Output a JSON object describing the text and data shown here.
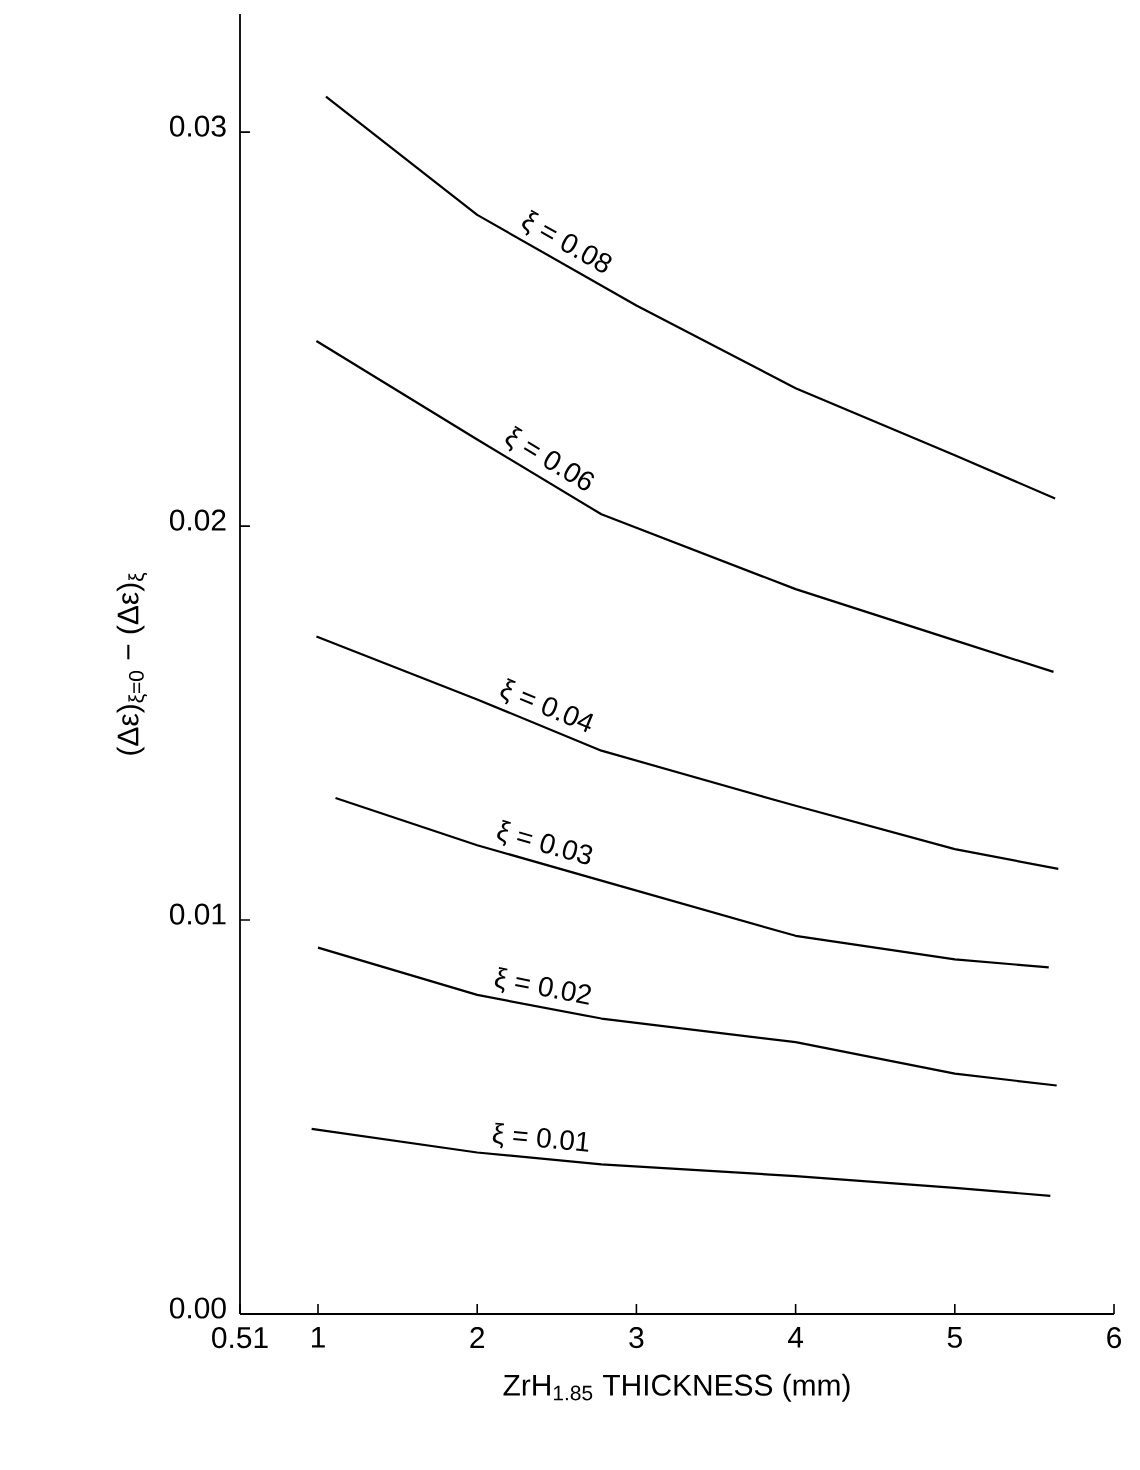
{
  "chart_data": {
    "type": "line",
    "xlabel": "ZrH$_{1.85}$ THICKNESS (mm)",
    "ylabel": "(Δε)$_{ξ=0}$ − (Δε)$_{ξ}$",
    "xlim": [
      0.51,
      6
    ],
    "ylim": [
      0,
      0.033
    ],
    "xticks": [
      0.51,
      1,
      2,
      3,
      4,
      5,
      6
    ],
    "yticks": [
      {
        "value": 0,
        "label": "0.00"
      },
      0.01,
      0.02,
      0.03
    ],
    "marker": "none",
    "line_style": "solid",
    "series": [
      {
        "name": "ξ = 0.08",
        "color": "#000000",
        "x": [
          1.05,
          2,
          3,
          4,
          5,
          5.63
        ],
        "values": [
          0.0309,
          0.0279,
          0.0256,
          0.0235,
          0.0218,
          0.0207
        ]
      },
      {
        "name": "ξ = 0.06",
        "color": "#000000",
        "x": [
          0.99,
          2,
          2.78,
          4,
          5,
          5.62
        ],
        "values": [
          0.0247,
          0.0222,
          0.0203,
          0.0184,
          0.0171,
          0.0163
        ]
      },
      {
        "name": "ξ = 0.04",
        "color": "#000000",
        "x": [
          0.99,
          2,
          2.78,
          4,
          5,
          5.65
        ],
        "values": [
          0.0172,
          0.0156,
          0.0143,
          0.0129,
          0.0118,
          0.0113
        ]
      },
      {
        "name": "ξ = 0.03",
        "color": "#000000",
        "x": [
          1.11,
          2,
          2.78,
          4,
          5,
          5.59
        ],
        "values": [
          0.0131,
          0.0119,
          0.011,
          0.0096,
          0.009,
          0.0088
        ]
      },
      {
        "name": "ξ = 0.02",
        "color": "#000000",
        "x": [
          1.0,
          2,
          2.78,
          4,
          5,
          5.64
        ],
        "values": [
          0.0093,
          0.0081,
          0.0075,
          0.0069,
          0.0061,
          0.0058
        ]
      },
      {
        "name": "ξ = 0.01",
        "color": "#000000",
        "x": [
          0.96,
          2,
          2.78,
          4,
          5,
          5.6
        ],
        "values": [
          0.0047,
          0.0041,
          0.0038,
          0.0035,
          0.0032,
          0.003
        ]
      }
    ]
  }
}
